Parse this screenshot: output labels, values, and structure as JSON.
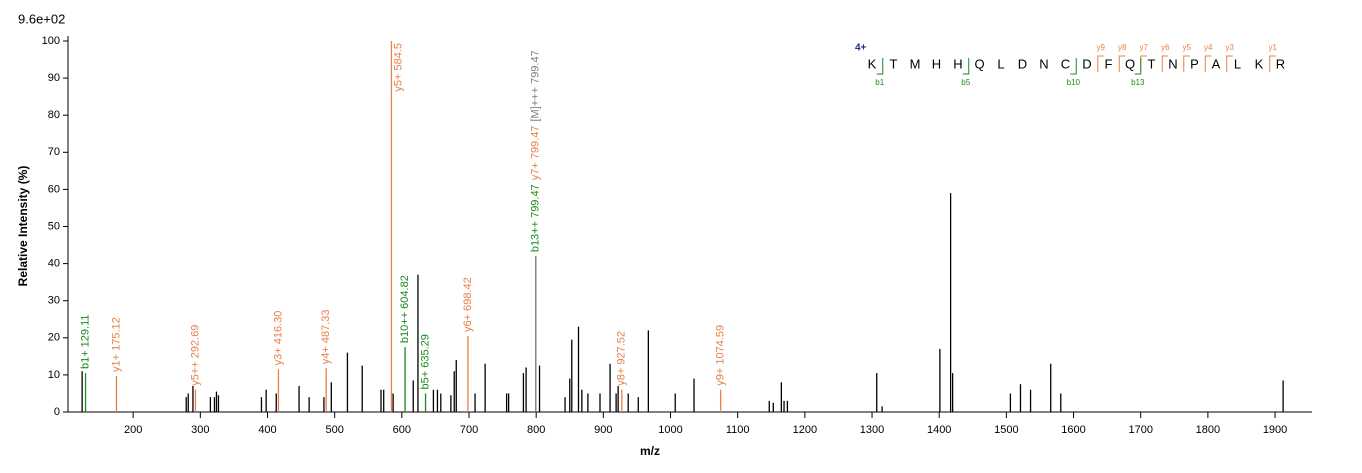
{
  "chart_data": {
    "type": "spectrum",
    "scale_label": "9.6e+02",
    "xlabel": "m/z",
    "ylabel": "Relative   Intensity (%)",
    "xlim": [
      103,
      1955
    ],
    "ylim": [
      0,
      100
    ],
    "xticks": [
      200,
      300,
      400,
      500,
      600,
      700,
      800,
      900,
      1000,
      1100,
      1200,
      1300,
      1400,
      1500,
      1600,
      1700,
      1800,
      1900
    ],
    "yticks": [
      0,
      10,
      20,
      30,
      40,
      50,
      60,
      70,
      80,
      90,
      100
    ],
    "series": [
      {
        "color": "#000000",
        "x": [
          124,
          279,
          282,
          289,
          315,
          321,
          324,
          327,
          391,
          398,
          413,
          447,
          462,
          484,
          495,
          519,
          541,
          569,
          573,
          587,
          617,
          624,
          647,
          653,
          658,
          673,
          678,
          681,
          709,
          724,
          756,
          759,
          781,
          785,
          805,
          843,
          850,
          853,
          863,
          868,
          877,
          895,
          910,
          919,
          922,
          937,
          952,
          967,
          1007,
          1035,
          1147,
          1153,
          1165,
          1169,
          1174,
          1307,
          1315,
          1401,
          1417,
          1420,
          1506,
          1521,
          1536,
          1566,
          1581,
          1912
        ],
        "values": [
          11,
          4,
          5,
          7,
          4,
          4,
          5.5,
          4.5,
          4,
          6,
          5,
          7,
          4,
          4,
          8,
          16,
          12.5,
          6,
          6,
          5,
          8.5,
          37,
          6,
          6,
          5,
          4.5,
          11,
          14,
          5,
          13,
          5,
          5,
          10.5,
          12,
          12.5,
          4,
          9,
          19.5,
          23,
          6,
          5,
          5,
          13,
          5,
          7,
          5,
          4,
          22,
          5,
          9,
          3,
          2.5,
          8,
          3,
          3,
          10.5,
          1.5,
          17,
          59,
          10.5,
          5,
          7.5,
          6,
          13,
          5,
          8.5
        ]
      },
      {
        "color": "#1a8a1a",
        "x": [
          129.11,
          604.82,
          635.29,
          799.47
        ],
        "values": [
          10.5,
          17.5,
          5,
          42
        ],
        "value_labels": [
          "b1+ 129.11",
          "b10++ 604.82",
          "b5+ 635.29",
          "b13++ 799.47"
        ]
      },
      {
        "color": "#e8804a",
        "x": [
          175.12,
          292.69,
          416.3,
          487.33,
          584.5,
          698.42,
          799.47,
          927.52,
          1074.59
        ],
        "values": [
          9.7,
          6,
          11.5,
          11.8,
          100,
          20.5,
          42,
          6,
          6
        ],
        "value_labels": [
          "y1+ 175.12",
          "y5++ 292.69",
          "y3+ 416.30",
          "y4+ 487.33",
          "y5+ 584.5",
          "y6+ 698.42",
          "y7+ 799.47",
          "y8+ 927.52",
          "y9+ 1074.59"
        ]
      },
      {
        "color": "#808080",
        "x": [
          799.47
        ],
        "values": [
          42
        ],
        "value_labels": [
          "[M]+++ 799.47"
        ]
      }
    ],
    "sequence": {
      "charge": "4+",
      "residues": [
        "K",
        "T",
        "M",
        "H",
        "H",
        "Q",
        "L",
        "D",
        "N",
        "C",
        "D",
        "F",
        "Q",
        "T",
        "N",
        "P",
        "A",
        "L",
        "K",
        "R"
      ],
      "y_ions": [
        "y9",
        "y8",
        "y7",
        "y6",
        "y5",
        "y4",
        "y3",
        "y1"
      ],
      "b_ions": [
        "b1",
        "b5",
        "b10",
        "b13"
      ]
    }
  }
}
